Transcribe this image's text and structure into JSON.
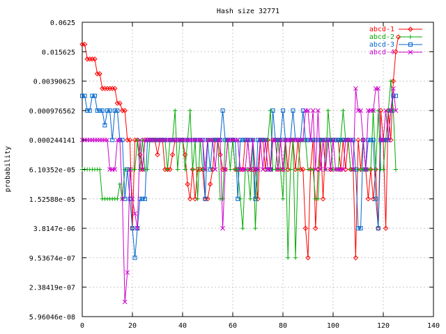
{
  "chart_data": {
    "type": "line",
    "title": "Hash size 32771",
    "xlabel": "",
    "ylabel": "probability",
    "y_scale": "log2",
    "xlim": [
      0,
      140
    ],
    "ylim_exponent": [
      -24,
      -4
    ],
    "x_ticks": [
      0,
      20,
      40,
      60,
      80,
      100,
      120,
      140
    ],
    "y_ticks": [
      {
        "label": "0.0625",
        "exp": -4
      },
      {
        "label": "0.015625",
        "exp": -6
      },
      {
        "label": "0.00390625",
        "exp": -8
      },
      {
        "label": "0.000976562",
        "exp": -10
      },
      {
        "label": "0.000244141",
        "exp": -12
      },
      {
        "label": "6.10352e-05",
        "exp": -14
      },
      {
        "label": "1.52588e-05",
        "exp": -16
      },
      {
        "label": "3.8147e-06",
        "exp": -18
      },
      {
        "label": "9.53674e-07",
        "exp": -20
      },
      {
        "label": "2.38419e-07",
        "exp": -22
      },
      {
        "label": "5.96046e-08",
        "exp": -24
      }
    ],
    "grid": true,
    "legend_position": "top-right",
    "series": [
      {
        "name": "abcd-1",
        "color": "#ff0000",
        "marker": "diamond",
        "exponents": [
          -5.5,
          -5.5,
          -6.5,
          -6.5,
          -6.5,
          -6.5,
          -7.5,
          -7.5,
          -8.5,
          -8.5,
          -8.5,
          -8.5,
          -8.5,
          -8.5,
          -9.5,
          -9.5,
          -10,
          -10,
          -12,
          -12,
          -18,
          -12,
          -12,
          -13,
          -14,
          -12,
          -12,
          -12,
          -12,
          -12,
          -13,
          -12,
          -12,
          -14,
          -14,
          -14,
          -13,
          -12,
          -12,
          -12,
          -12,
          -13,
          -15,
          -16,
          -14,
          -16,
          -14,
          -14,
          -14,
          -16,
          -16,
          -15,
          -14,
          -12,
          -12,
          -13,
          -14,
          -14,
          -12,
          -12,
          -12,
          -14,
          -14,
          -14,
          -14,
          -12,
          -12,
          -14,
          -14,
          -14,
          -16,
          -12,
          -12,
          -14,
          -12,
          -14,
          -12,
          -12,
          -14,
          -12,
          -14,
          -12,
          -14,
          -12,
          -12,
          -14,
          -12,
          -14,
          -14,
          -18,
          -20,
          -14,
          -12,
          -18,
          -14,
          -12,
          -16,
          -12,
          -12,
          -14,
          -12,
          -12,
          -12,
          -14,
          -12,
          -14,
          -12,
          -14,
          -14,
          -20,
          -12,
          -14,
          -12,
          -14,
          -16,
          -14,
          -16,
          -14,
          -18,
          -10,
          -12,
          -18,
          -10,
          -12,
          -8,
          -6,
          -5
        ]
      },
      {
        "name": "abcd-2",
        "color": "#00aa00",
        "marker": "plus",
        "exponents": [
          -14,
          -14,
          -14,
          -14,
          -14,
          -14,
          -14,
          -14,
          -16,
          -16,
          -16,
          -16,
          -16,
          -16,
          -16,
          -15,
          -16,
          -14,
          -14,
          -14,
          -14,
          -14,
          -12,
          -14,
          -12,
          -14,
          -14,
          -12,
          -12,
          -12,
          -12,
          -12,
          -12,
          -12,
          -14,
          -12,
          -12,
          -10,
          -14,
          -12,
          -12,
          -14,
          -12,
          -10,
          -14,
          -12,
          -16,
          -12,
          -14,
          -14,
          -12,
          -12,
          -12,
          -12,
          -12,
          -16,
          -16,
          -12,
          -12,
          -14,
          -12,
          -14,
          -14,
          -16,
          -18,
          -14,
          -14,
          -16,
          -12,
          -18,
          -14,
          -12,
          -12,
          -12,
          -12,
          -10,
          -14,
          -14,
          -12,
          -14,
          -16,
          -12,
          -20,
          -14,
          -12,
          -20,
          -14,
          -12,
          -12,
          -12,
          -14,
          -14,
          -14,
          -16,
          -16,
          -12,
          -12,
          -14,
          -10,
          -12,
          -14,
          -14,
          -14,
          -12,
          -10,
          -12,
          -12,
          -14,
          -14,
          -14,
          -14,
          -14,
          -14,
          -14,
          -14,
          -14,
          -10,
          -14,
          -10,
          -14,
          -14,
          -12,
          -10,
          -8,
          -10,
          -14
        ]
      },
      {
        "name": "abcd-3",
        "color": "#0066cc",
        "marker": "square",
        "exponents": [
          -9,
          -9,
          -10,
          -10,
          -9,
          -9,
          -10,
          -10,
          -10,
          -11,
          -10,
          -10,
          -12,
          -10,
          -10,
          -12,
          -12,
          -16,
          -14,
          -16,
          -18,
          -20,
          -18,
          -16,
          -16,
          -16,
          -12,
          -12,
          -12,
          -12,
          -12,
          -12,
          -12,
          -12,
          -12,
          -12,
          -12,
          -12,
          -12,
          -12,
          -12,
          -12,
          -12,
          -12,
          -12,
          -12,
          -12,
          -12,
          -12,
          -16,
          -12,
          -14,
          -12,
          -12,
          -12,
          -12,
          -10,
          -12,
          -12,
          -12,
          -12,
          -12,
          -16,
          -12,
          -12,
          -12,
          -12,
          -12,
          -12,
          -16,
          -12,
          -12,
          -12,
          -12,
          -14,
          -14,
          -10,
          -12,
          -12,
          -12,
          -10,
          -12,
          -12,
          -12,
          -10,
          -12,
          -12,
          -12,
          -10,
          -12,
          -12,
          -12,
          -12,
          -12,
          -12,
          -12,
          -12,
          -12,
          -12,
          -12,
          -12,
          -12,
          -12,
          -12,
          -12,
          -12,
          -12,
          -12,
          -12,
          -14,
          -18,
          -18,
          -12,
          -14,
          -12,
          -12,
          -12,
          -16,
          -18,
          -12,
          -12,
          -12,
          -12,
          -10,
          -9,
          -9
        ]
      },
      {
        "name": "abcd-4",
        "color": "#cc00cc",
        "marker": "cross",
        "exponents": [
          -12,
          -12,
          -12,
          -12,
          -12,
          -12,
          -12,
          -12,
          -12,
          -12,
          -12,
          -14,
          -14,
          -14,
          -12,
          -12,
          -16,
          -23,
          -21,
          -14,
          -16,
          -17,
          -18,
          -12,
          -14,
          -12,
          -12,
          -12,
          -12,
          -12,
          -12,
          -12,
          -12,
          -12,
          -12,
          -12,
          -12,
          -12,
          -12,
          -12,
          -12,
          -12,
          -12,
          -12,
          -12,
          -12,
          -12,
          -12,
          -12,
          -14,
          -12,
          -12,
          -12,
          -14,
          -12,
          -12,
          -18,
          -14,
          -12,
          -12,
          -12,
          -12,
          -12,
          -14,
          -14,
          -14,
          -12,
          -14,
          -12,
          -14,
          -14,
          -12,
          -14,
          -12,
          -14,
          -14,
          -12,
          -12,
          -14,
          -12,
          -14,
          -12,
          -12,
          -12,
          -12,
          -12,
          -12,
          -12,
          -12,
          -10,
          -10,
          -12,
          -10,
          -14,
          -10,
          -14,
          -12,
          -14,
          -12,
          -14,
          -12,
          -14,
          -14,
          -14,
          -14,
          -12,
          -12,
          -12,
          -14,
          -8.5,
          -10,
          -10,
          -12,
          -14,
          -10,
          -10,
          -10,
          -8.5,
          -8.5,
          -12,
          -12,
          -10,
          -12,
          -10,
          -8.5,
          -10
        ]
      }
    ]
  }
}
